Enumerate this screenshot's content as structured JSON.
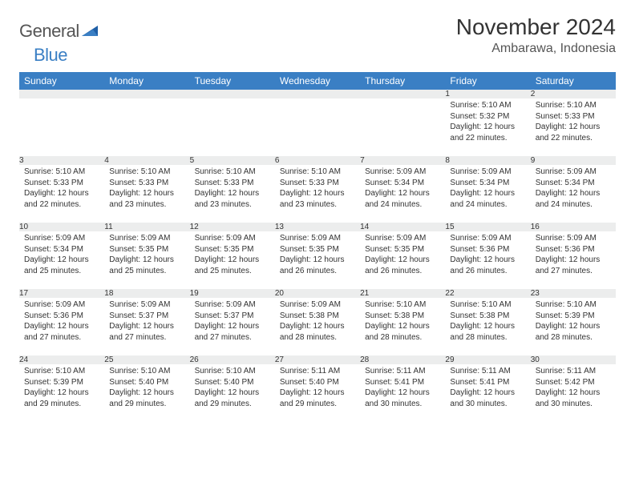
{
  "logo": {
    "general": "General",
    "blue": "Blue"
  },
  "title": "November 2024",
  "location": "Ambarawa, Indonesia",
  "colors": {
    "header_bg": "#3a7fc4",
    "header_text": "#ffffff",
    "daynum_bg": "#eceded",
    "border": "#3a7fc4",
    "text": "#333333",
    "page_bg": "#ffffff"
  },
  "typography": {
    "title_fontsize": 28,
    "location_fontsize": 16,
    "header_fontsize": 12,
    "daynum_fontsize": 11,
    "body_fontsize": 10
  },
  "weekdays": [
    "Sunday",
    "Monday",
    "Tuesday",
    "Wednesday",
    "Thursday",
    "Friday",
    "Saturday"
  ],
  "weeks": [
    [
      null,
      null,
      null,
      null,
      null,
      {
        "n": "1",
        "sr": "Sunrise: 5:10 AM",
        "ss": "Sunset: 5:32 PM",
        "dl": "Daylight: 12 hours and 22 minutes."
      },
      {
        "n": "2",
        "sr": "Sunrise: 5:10 AM",
        "ss": "Sunset: 5:33 PM",
        "dl": "Daylight: 12 hours and 22 minutes."
      }
    ],
    [
      {
        "n": "3",
        "sr": "Sunrise: 5:10 AM",
        "ss": "Sunset: 5:33 PM",
        "dl": "Daylight: 12 hours and 22 minutes."
      },
      {
        "n": "4",
        "sr": "Sunrise: 5:10 AM",
        "ss": "Sunset: 5:33 PM",
        "dl": "Daylight: 12 hours and 23 minutes."
      },
      {
        "n": "5",
        "sr": "Sunrise: 5:10 AM",
        "ss": "Sunset: 5:33 PM",
        "dl": "Daylight: 12 hours and 23 minutes."
      },
      {
        "n": "6",
        "sr": "Sunrise: 5:10 AM",
        "ss": "Sunset: 5:33 PM",
        "dl": "Daylight: 12 hours and 23 minutes."
      },
      {
        "n": "7",
        "sr": "Sunrise: 5:09 AM",
        "ss": "Sunset: 5:34 PM",
        "dl": "Daylight: 12 hours and 24 minutes."
      },
      {
        "n": "8",
        "sr": "Sunrise: 5:09 AM",
        "ss": "Sunset: 5:34 PM",
        "dl": "Daylight: 12 hours and 24 minutes."
      },
      {
        "n": "9",
        "sr": "Sunrise: 5:09 AM",
        "ss": "Sunset: 5:34 PM",
        "dl": "Daylight: 12 hours and 24 minutes."
      }
    ],
    [
      {
        "n": "10",
        "sr": "Sunrise: 5:09 AM",
        "ss": "Sunset: 5:34 PM",
        "dl": "Daylight: 12 hours and 25 minutes."
      },
      {
        "n": "11",
        "sr": "Sunrise: 5:09 AM",
        "ss": "Sunset: 5:35 PM",
        "dl": "Daylight: 12 hours and 25 minutes."
      },
      {
        "n": "12",
        "sr": "Sunrise: 5:09 AM",
        "ss": "Sunset: 5:35 PM",
        "dl": "Daylight: 12 hours and 25 minutes."
      },
      {
        "n": "13",
        "sr": "Sunrise: 5:09 AM",
        "ss": "Sunset: 5:35 PM",
        "dl": "Daylight: 12 hours and 26 minutes."
      },
      {
        "n": "14",
        "sr": "Sunrise: 5:09 AM",
        "ss": "Sunset: 5:35 PM",
        "dl": "Daylight: 12 hours and 26 minutes."
      },
      {
        "n": "15",
        "sr": "Sunrise: 5:09 AM",
        "ss": "Sunset: 5:36 PM",
        "dl": "Daylight: 12 hours and 26 minutes."
      },
      {
        "n": "16",
        "sr": "Sunrise: 5:09 AM",
        "ss": "Sunset: 5:36 PM",
        "dl": "Daylight: 12 hours and 27 minutes."
      }
    ],
    [
      {
        "n": "17",
        "sr": "Sunrise: 5:09 AM",
        "ss": "Sunset: 5:36 PM",
        "dl": "Daylight: 12 hours and 27 minutes."
      },
      {
        "n": "18",
        "sr": "Sunrise: 5:09 AM",
        "ss": "Sunset: 5:37 PM",
        "dl": "Daylight: 12 hours and 27 minutes."
      },
      {
        "n": "19",
        "sr": "Sunrise: 5:09 AM",
        "ss": "Sunset: 5:37 PM",
        "dl": "Daylight: 12 hours and 27 minutes."
      },
      {
        "n": "20",
        "sr": "Sunrise: 5:09 AM",
        "ss": "Sunset: 5:38 PM",
        "dl": "Daylight: 12 hours and 28 minutes."
      },
      {
        "n": "21",
        "sr": "Sunrise: 5:10 AM",
        "ss": "Sunset: 5:38 PM",
        "dl": "Daylight: 12 hours and 28 minutes."
      },
      {
        "n": "22",
        "sr": "Sunrise: 5:10 AM",
        "ss": "Sunset: 5:38 PM",
        "dl": "Daylight: 12 hours and 28 minutes."
      },
      {
        "n": "23",
        "sr": "Sunrise: 5:10 AM",
        "ss": "Sunset: 5:39 PM",
        "dl": "Daylight: 12 hours and 28 minutes."
      }
    ],
    [
      {
        "n": "24",
        "sr": "Sunrise: 5:10 AM",
        "ss": "Sunset: 5:39 PM",
        "dl": "Daylight: 12 hours and 29 minutes."
      },
      {
        "n": "25",
        "sr": "Sunrise: 5:10 AM",
        "ss": "Sunset: 5:40 PM",
        "dl": "Daylight: 12 hours and 29 minutes."
      },
      {
        "n": "26",
        "sr": "Sunrise: 5:10 AM",
        "ss": "Sunset: 5:40 PM",
        "dl": "Daylight: 12 hours and 29 minutes."
      },
      {
        "n": "27",
        "sr": "Sunrise: 5:11 AM",
        "ss": "Sunset: 5:40 PM",
        "dl": "Daylight: 12 hours and 29 minutes."
      },
      {
        "n": "28",
        "sr": "Sunrise: 5:11 AM",
        "ss": "Sunset: 5:41 PM",
        "dl": "Daylight: 12 hours and 30 minutes."
      },
      {
        "n": "29",
        "sr": "Sunrise: 5:11 AM",
        "ss": "Sunset: 5:41 PM",
        "dl": "Daylight: 12 hours and 30 minutes."
      },
      {
        "n": "30",
        "sr": "Sunrise: 5:11 AM",
        "ss": "Sunset: 5:42 PM",
        "dl": "Daylight: 12 hours and 30 minutes."
      }
    ]
  ]
}
